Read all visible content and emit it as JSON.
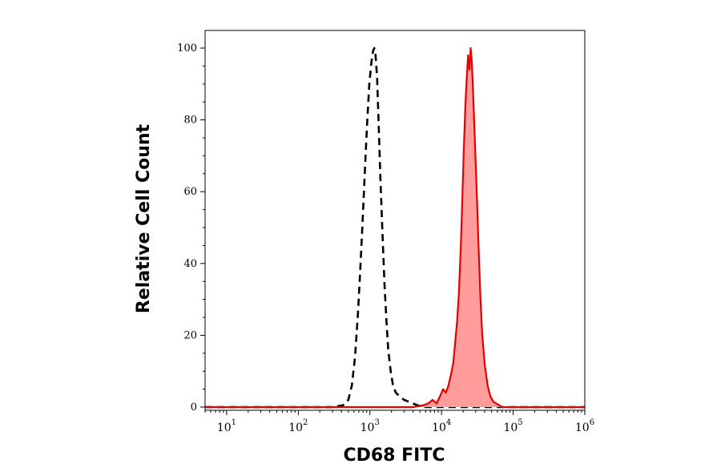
{
  "chart_data": {
    "type": "area",
    "xlabel": "CD68 FITC",
    "ylabel": "Relative Cell Count",
    "xscale": "log",
    "xlim": [
      5,
      1000000
    ],
    "ylim": [
      0,
      103
    ],
    "x_ticks": [
      {
        "base": "10",
        "exp": "1",
        "value": 10
      },
      {
        "base": "10",
        "exp": "2",
        "value": 100
      },
      {
        "base": "10",
        "exp": "3",
        "value": 1000
      },
      {
        "base": "10",
        "exp": "4",
        "value": 10000
      },
      {
        "base": "10",
        "exp": "5",
        "value": 100000
      },
      {
        "base": "10",
        "exp": "6",
        "value": 1000000
      }
    ],
    "y_ticks": [
      0,
      20,
      40,
      60,
      80,
      100
    ],
    "series": [
      {
        "style": "dashed",
        "color": "#000000",
        "fill": "none",
        "x": [
          5,
          100,
          300,
          420,
          500,
          560,
          620,
          680,
          740,
          800,
          860,
          920,
          980,
          1050,
          1100,
          1150,
          1200,
          1260,
          1320,
          1400,
          1500,
          1600,
          1700,
          1800,
          1950,
          2100,
          2300,
          2600,
          3000,
          3500,
          4000,
          4600,
          5200,
          6000,
          20000,
          1000000
        ],
        "y": [
          0,
          0,
          0,
          0.5,
          2,
          6,
          14,
          26,
          40,
          54,
          68,
          80,
          90,
          96,
          99,
          100,
          98,
          92,
          80,
          64,
          48,
          34,
          24,
          16,
          10,
          6,
          4,
          3,
          2,
          1.5,
          1,
          0.5,
          0.3,
          0,
          0,
          0
        ]
      },
      {
        "style": "solid",
        "color": "#e60000",
        "fill": "#ff9c9c",
        "x": [
          5,
          1000,
          4000,
          5500,
          6500,
          7500,
          8500,
          9500,
          10500,
          11500,
          12500,
          13500,
          14500,
          15500,
          16500,
          17500,
          18500,
          19500,
          20500,
          21500,
          22500,
          23500,
          24500,
          25500,
          26500,
          27500,
          29000,
          31000,
          33000,
          35000,
          37000,
          40000,
          44000,
          48000,
          53000,
          58000,
          64000,
          70000,
          1000000
        ],
        "y": [
          0,
          0,
          0,
          0.5,
          1,
          2,
          1,
          3,
          5,
          4,
          6,
          9,
          12,
          18,
          24,
          32,
          44,
          58,
          72,
          84,
          92,
          98,
          94,
          100,
          96,
          88,
          76,
          60,
          44,
          30,
          20,
          12,
          6,
          3,
          1.5,
          1,
          0.5,
          0,
          0
        ]
      }
    ]
  }
}
